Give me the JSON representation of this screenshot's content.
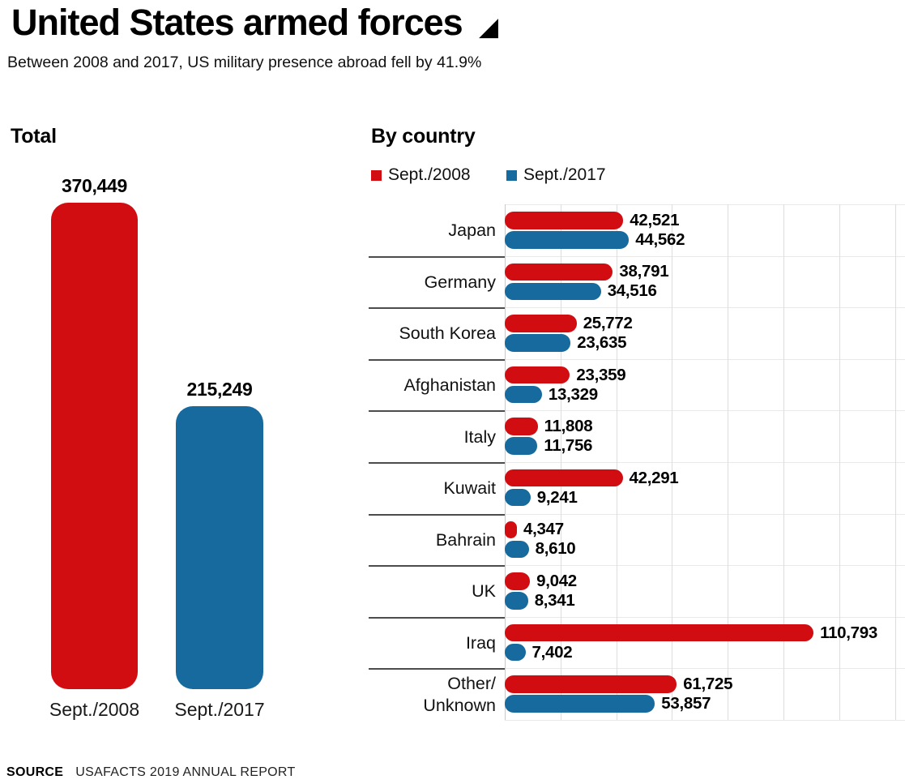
{
  "header": {
    "title": "United States armed forces",
    "title_icon": "◢",
    "subtitle": "Between 2008 and 2017, US military presence abroad fell by 41.9%"
  },
  "colors": {
    "red_2008": "#d10d12",
    "blue_2017": "#176a9d",
    "separator": "#4c4c4c",
    "gridline": "#dddddd"
  },
  "chart_data": [
    {
      "type": "bar",
      "orientation": "vertical",
      "title": "Total",
      "categories": [
        "Sept./2008",
        "Sept./2017"
      ],
      "values": [
        370449,
        215249
      ],
      "value_labels": [
        "370,449",
        "215,249"
      ],
      "colors": [
        "#d10d12",
        "#176a9d"
      ],
      "ylim": [
        0,
        370449
      ],
      "grid": false
    },
    {
      "type": "bar",
      "orientation": "horizontal",
      "title": "By country",
      "legend_position": "top",
      "legend": [
        {
          "label": "Sept./2008",
          "color": "#d10d12"
        },
        {
          "label": "Sept./2017",
          "color": "#176a9d"
        }
      ],
      "categories": [
        "Japan",
        "Germany",
        "South Korea",
        "Afghanistan",
        "Italy",
        "Kuwait",
        "Bahrain",
        "UK",
        "Iraq",
        "Other/\nUnknown"
      ],
      "series": [
        {
          "name": "Sept./2008",
          "values": [
            42521,
            38791,
            25772,
            23359,
            11808,
            42291,
            4347,
            9042,
            110793,
            61725
          ]
        },
        {
          "name": "Sept./2017",
          "values": [
            44562,
            34516,
            23635,
            13329,
            11756,
            9241,
            8610,
            8341,
            7402,
            53857
          ]
        }
      ],
      "xlim": [
        0,
        143600
      ],
      "grid_step": 20000,
      "grid": true
    }
  ],
  "footer": {
    "source_label": "SOURCE",
    "source_text": "USAFACTS 2019 ANNUAL REPORT"
  }
}
